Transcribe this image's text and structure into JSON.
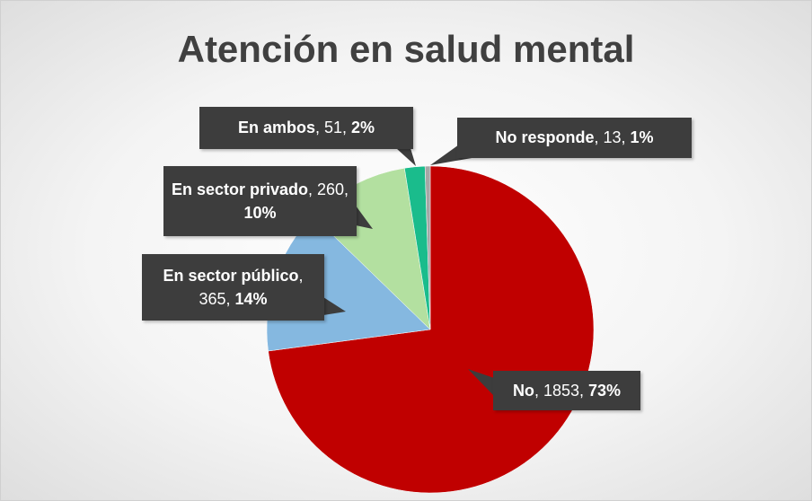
{
  "chart_data": {
    "type": "pie",
    "title": "Atención en salud mental",
    "categories": [
      "No",
      "En sector público",
      "En sector privado",
      "En ambos",
      "No responde"
    ],
    "values": [
      1853,
      365,
      260,
      51,
      13
    ],
    "percent_labels": [
      "73%",
      "14%",
      "10%",
      "2%",
      "1%"
    ],
    "label_separator": ", ",
    "colors": [
      "#c00000",
      "#85b8e0",
      "#b3e0a0",
      "#1abc8c",
      "#a6a6a6"
    ]
  }
}
